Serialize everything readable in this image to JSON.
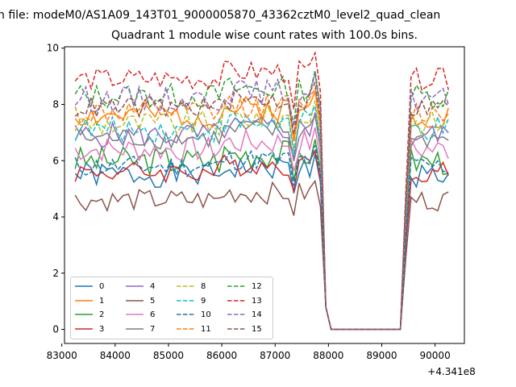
{
  "suptitle": "n file: modeM0/AS1A09_143T01_9000005870_43362cztM0_level2_quad_clean",
  "chart_data": {
    "type": "line",
    "title": "Quadrant 1 module wise count rates with 100.0s bins.",
    "xlabel": "",
    "ylabel": "",
    "x_offset_label": "+4.341e8",
    "xlim": [
      83050,
      90550
    ],
    "ylim": [
      -0.5,
      10.05
    ],
    "xticks": [
      83000,
      84000,
      85000,
      86000,
      87000,
      88000,
      89000,
      90000
    ],
    "yticks": [
      0,
      2,
      4,
      6,
      8,
      10
    ],
    "grid": false,
    "legend_position": "lower-left",
    "gap_start": 88000,
    "gap_end": 89350,
    "series": [
      {
        "name": "0",
        "color": "#1f77b4",
        "style": "solid",
        "mean": 5.5,
        "amp": 0.35,
        "seed": 1
      },
      {
        "name": "1",
        "color": "#ff7f0e",
        "style": "solid",
        "mean": 7.6,
        "amp": 0.35,
        "seed": 2
      },
      {
        "name": "2",
        "color": "#2ca02c",
        "style": "solid",
        "mean": 6.0,
        "amp": 0.4,
        "seed": 3
      },
      {
        "name": "3",
        "color": "#d62728",
        "style": "solid",
        "mean": 5.6,
        "amp": 0.3,
        "seed": 4
      },
      {
        "name": "4",
        "color": "#9467bd",
        "style": "solid",
        "mean": 6.9,
        "amp": 0.35,
        "seed": 5
      },
      {
        "name": "5",
        "color": "#8c564b",
        "style": "solid",
        "mean": 4.6,
        "amp": 0.3,
        "seed": 6
      },
      {
        "name": "6",
        "color": "#e377c2",
        "style": "solid",
        "mean": 6.4,
        "amp": 0.35,
        "seed": 7
      },
      {
        "name": "7",
        "color": "#7f7f7f",
        "style": "solid",
        "mean": 6.8,
        "amp": 0.3,
        "seed": 8
      },
      {
        "name": "8",
        "color": "#bcbd22",
        "style": "dashed",
        "mean": 7.3,
        "amp": 0.35,
        "seed": 9
      },
      {
        "name": "9",
        "color": "#17becf",
        "style": "dashed",
        "mean": 7.1,
        "amp": 0.35,
        "seed": 10
      },
      {
        "name": "10",
        "color": "#1f77b4",
        "style": "dashed",
        "mean": 5.8,
        "amp": 0.3,
        "seed": 11
      },
      {
        "name": "11",
        "color": "#ff7f0e",
        "style": "dashed",
        "mean": 7.7,
        "amp": 0.35,
        "seed": 12
      },
      {
        "name": "12",
        "color": "#2ca02c",
        "style": "dashed",
        "mean": 8.3,
        "amp": 0.35,
        "seed": 13
      },
      {
        "name": "13",
        "color": "#d62728",
        "style": "dashed",
        "mean": 8.9,
        "amp": 0.3,
        "seed": 14
      },
      {
        "name": "14",
        "color": "#9467bd",
        "style": "dashed",
        "mean": 8.2,
        "amp": 0.35,
        "seed": 15
      },
      {
        "name": "15",
        "color": "#8c564b",
        "style": "dashed",
        "mean": 7.9,
        "amp": 0.3,
        "seed": 16
      }
    ]
  }
}
